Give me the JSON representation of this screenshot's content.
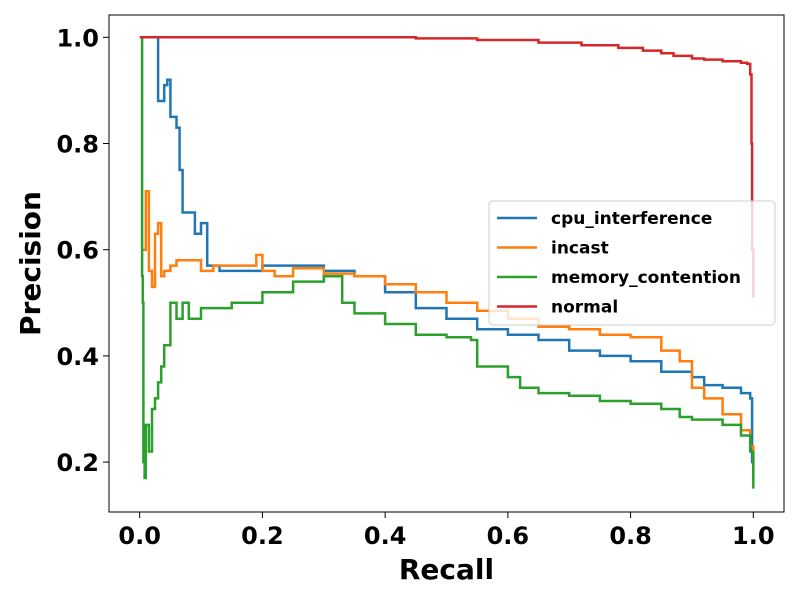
{
  "chart_data": {
    "type": "line",
    "title": "",
    "xlabel": "Recall",
    "ylabel": "Precision",
    "xlim": [
      -0.05,
      1.05
    ],
    "ylim": [
      0.106,
      1.042
    ],
    "xticks": [
      "0.0",
      "0.2",
      "0.4",
      "0.6",
      "0.8",
      "1.0"
    ],
    "yticks": [
      "0.2",
      "0.4",
      "0.6",
      "0.8",
      "1.0"
    ],
    "grid": false,
    "legend_position": "center-right",
    "series": [
      {
        "name": "cpu_interference",
        "color": "#1f77b4",
        "points": [
          [
            0.03,
            1.0
          ],
          [
            0.03,
            0.88
          ],
          [
            0.04,
            0.91
          ],
          [
            0.045,
            0.92
          ],
          [
            0.05,
            0.85
          ],
          [
            0.06,
            0.83
          ],
          [
            0.065,
            0.75
          ],
          [
            0.07,
            0.67
          ],
          [
            0.08,
            0.67
          ],
          [
            0.09,
            0.63
          ],
          [
            0.1,
            0.65
          ],
          [
            0.11,
            0.57
          ],
          [
            0.13,
            0.56
          ],
          [
            0.15,
            0.56
          ],
          [
            0.18,
            0.56
          ],
          [
            0.2,
            0.57
          ],
          [
            0.25,
            0.57
          ],
          [
            0.3,
            0.56
          ],
          [
            0.35,
            0.55
          ],
          [
            0.4,
            0.52
          ],
          [
            0.45,
            0.49
          ],
          [
            0.5,
            0.47
          ],
          [
            0.55,
            0.45
          ],
          [
            0.6,
            0.44
          ],
          [
            0.65,
            0.43
          ],
          [
            0.7,
            0.41
          ],
          [
            0.75,
            0.4
          ],
          [
            0.8,
            0.39
          ],
          [
            0.85,
            0.37
          ],
          [
            0.9,
            0.36
          ],
          [
            0.92,
            0.345
          ],
          [
            0.95,
            0.34
          ],
          [
            0.98,
            0.33
          ],
          [
            0.995,
            0.32
          ],
          [
            0.998,
            0.2
          ],
          [
            1.0,
            0.17
          ]
        ]
      },
      {
        "name": "incast",
        "color": "#ff7f0e",
        "points": [
          [
            0.005,
            0.6
          ],
          [
            0.01,
            0.71
          ],
          [
            0.015,
            0.56
          ],
          [
            0.02,
            0.53
          ],
          [
            0.025,
            0.63
          ],
          [
            0.03,
            0.65
          ],
          [
            0.035,
            0.55
          ],
          [
            0.04,
            0.56
          ],
          [
            0.05,
            0.57
          ],
          [
            0.06,
            0.58
          ],
          [
            0.08,
            0.58
          ],
          [
            0.1,
            0.56
          ],
          [
            0.12,
            0.57
          ],
          [
            0.15,
            0.57
          ],
          [
            0.19,
            0.59
          ],
          [
            0.2,
            0.56
          ],
          [
            0.22,
            0.55
          ],
          [
            0.25,
            0.565
          ],
          [
            0.3,
            0.555
          ],
          [
            0.35,
            0.55
          ],
          [
            0.4,
            0.535
          ],
          [
            0.45,
            0.52
          ],
          [
            0.5,
            0.5
          ],
          [
            0.55,
            0.485
          ],
          [
            0.6,
            0.47
          ],
          [
            0.65,
            0.455
          ],
          [
            0.7,
            0.45
          ],
          [
            0.75,
            0.44
          ],
          [
            0.8,
            0.435
          ],
          [
            0.85,
            0.41
          ],
          [
            0.88,
            0.39
          ],
          [
            0.9,
            0.34
          ],
          [
            0.92,
            0.32
          ],
          [
            0.95,
            0.29
          ],
          [
            0.98,
            0.26
          ],
          [
            0.995,
            0.23
          ],
          [
            1.0,
            0.175
          ]
        ]
      },
      {
        "name": "memory_contention",
        "color": "#2ca02c",
        "points": [
          [
            0.003,
            1.0
          ],
          [
            0.004,
            0.55
          ],
          [
            0.005,
            0.5
          ],
          [
            0.006,
            0.2
          ],
          [
            0.008,
            0.17
          ],
          [
            0.01,
            0.27
          ],
          [
            0.015,
            0.22
          ],
          [
            0.02,
            0.3
          ],
          [
            0.025,
            0.32
          ],
          [
            0.03,
            0.35
          ],
          [
            0.035,
            0.38
          ],
          [
            0.04,
            0.42
          ],
          [
            0.05,
            0.5
          ],
          [
            0.06,
            0.47
          ],
          [
            0.07,
            0.5
          ],
          [
            0.08,
            0.47
          ],
          [
            0.1,
            0.49
          ],
          [
            0.12,
            0.49
          ],
          [
            0.15,
            0.5
          ],
          [
            0.2,
            0.52
          ],
          [
            0.25,
            0.54
          ],
          [
            0.3,
            0.55
          ],
          [
            0.33,
            0.5
          ],
          [
            0.35,
            0.48
          ],
          [
            0.4,
            0.46
          ],
          [
            0.45,
            0.44
          ],
          [
            0.5,
            0.435
          ],
          [
            0.54,
            0.43
          ],
          [
            0.55,
            0.38
          ],
          [
            0.6,
            0.36
          ],
          [
            0.62,
            0.34
          ],
          [
            0.65,
            0.33
          ],
          [
            0.7,
            0.325
          ],
          [
            0.75,
            0.315
          ],
          [
            0.8,
            0.31
          ],
          [
            0.85,
            0.3
          ],
          [
            0.88,
            0.285
          ],
          [
            0.9,
            0.28
          ],
          [
            0.95,
            0.27
          ],
          [
            0.98,
            0.25
          ],
          [
            0.995,
            0.22
          ],
          [
            1.0,
            0.15
          ]
        ]
      },
      {
        "name": "normal",
        "color": "#d62728",
        "points": [
          [
            0.0,
            1.0
          ],
          [
            0.1,
            1.0
          ],
          [
            0.3,
            1.0
          ],
          [
            0.45,
            0.998
          ],
          [
            0.55,
            0.995
          ],
          [
            0.65,
            0.99
          ],
          [
            0.72,
            0.985
          ],
          [
            0.78,
            0.98
          ],
          [
            0.82,
            0.975
          ],
          [
            0.85,
            0.97
          ],
          [
            0.87,
            0.965
          ],
          [
            0.9,
            0.96
          ],
          [
            0.92,
            0.958
          ],
          [
            0.95,
            0.955
          ],
          [
            0.98,
            0.952
          ],
          [
            0.99,
            0.95
          ],
          [
            0.995,
            0.93
          ],
          [
            0.997,
            0.8
          ],
          [
            0.998,
            0.6
          ],
          [
            1.0,
            0.51
          ]
        ]
      }
    ]
  }
}
